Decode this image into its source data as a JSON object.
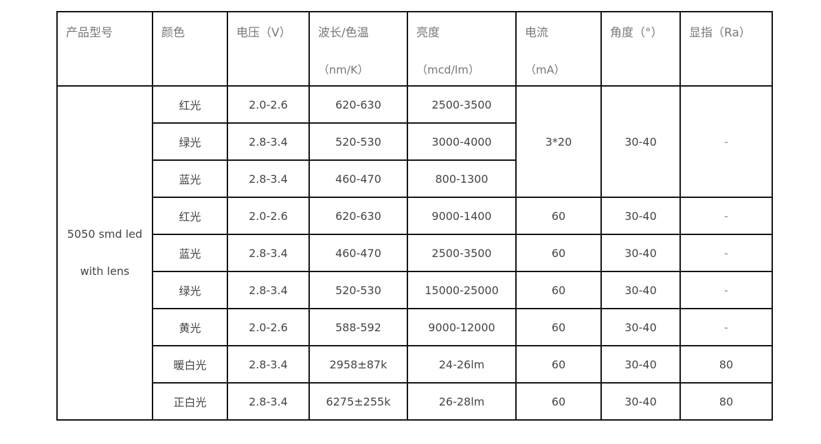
{
  "headers": [
    {
      "line1": "产品型号",
      "line2": ""
    },
    {
      "line1": "颜色",
      "line2": ""
    },
    {
      "line1": "电压（V）",
      "line2": ""
    },
    {
      "line1": "波长/色温",
      "line2": "（nm/K）"
    },
    {
      "line1": "亮度",
      "line2": "（mcd/lm）"
    },
    {
      "line1": "电流",
      "line2": "（mA）"
    },
    {
      "line1": "角度（°）",
      "line2": ""
    },
    {
      "line1": "显指（Ra）",
      "line2": ""
    }
  ],
  "model": {
    "line1": "5050 smd led",
    "line2": "with lens"
  },
  "rows": [
    {
      "color": "红光",
      "voltage": "2.0-2.6",
      "wavelength": "620-630",
      "brightness": "2500-3500",
      "current": "3*20",
      "angle": "30-40",
      "ra": "-"
    },
    {
      "color": "绿光",
      "voltage": "2.8-3.4",
      "wavelength": "520-530",
      "brightness": "3000-4000"
    },
    {
      "color": "蓝光",
      "voltage": "2.8-3.4",
      "wavelength": "460-470",
      "brightness": "800-1300"
    },
    {
      "color": "红光",
      "voltage": "2.0-2.6",
      "wavelength": "620-630",
      "brightness": "9000-1400",
      "current": "60",
      "angle": "30-40",
      "ra": "-"
    },
    {
      "color": "蓝光",
      "voltage": "2.8-3.4",
      "wavelength": "460-470",
      "brightness": "2500-3500",
      "current": "60",
      "angle": "30-40",
      "ra": "-"
    },
    {
      "color": "绿光",
      "voltage": "2.8-3.4",
      "wavelength": "520-530",
      "brightness": "15000-25000",
      "current": "60",
      "angle": "30-40",
      "ra": "-"
    },
    {
      "color": "黄光",
      "voltage": "2.0-2.6",
      "wavelength": "588-592",
      "brightness": "9000-12000",
      "current": "60",
      "angle": "30-40",
      "ra": "-"
    },
    {
      "color": "暖白光",
      "voltage": "2.8-3.4",
      "wavelength": "2958±87k",
      "brightness": "24-26lm",
      "current": "60",
      "angle": "30-40",
      "ra": "80"
    },
    {
      "color": "正白光",
      "voltage": "2.8-3.4",
      "wavelength": "6275±255k",
      "brightness": "26-28lm",
      "current": "60",
      "angle": "30-40",
      "ra": "80"
    }
  ]
}
